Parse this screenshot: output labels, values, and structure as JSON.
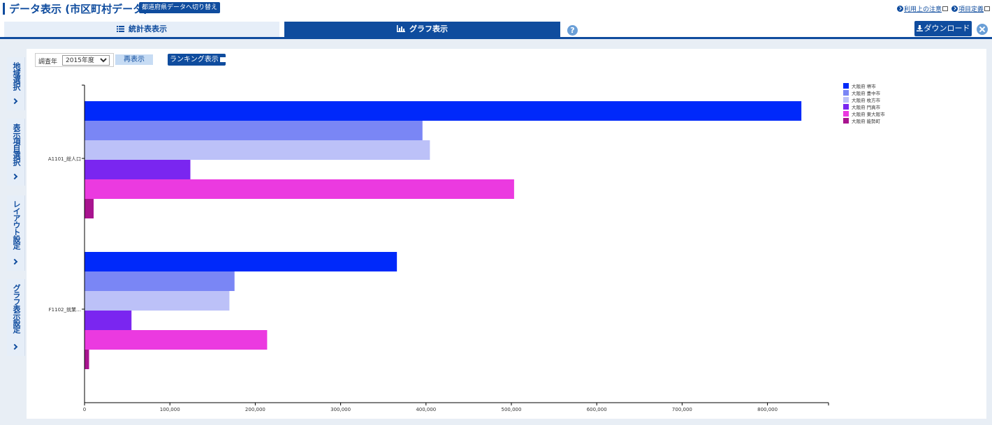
{
  "header": {
    "title": "データ表示 (市区町村データ)",
    "switch_label": "都道府県データへ切り替え",
    "links": {
      "terms": "利用上の注意",
      "definitions": "項目定義"
    }
  },
  "tabs": {
    "stat_table": "統計表表示",
    "graph": "グラフ表示"
  },
  "toolbar": {
    "download_label": "ダウンロード"
  },
  "side_tabs": [
    "地域選択",
    "表示項目選択",
    "レイアウト設定",
    "グラフ表示設定"
  ],
  "controls": {
    "year_label": "調査年",
    "year_selected": "2015年度",
    "refresh_label": "再表示",
    "ranking_label": "ランキング表示"
  },
  "colors": {
    "brand": "#0f4c9e",
    "series": [
      "#0029fa",
      "#7a86f5",
      "#bcc1f8",
      "#7a26f0",
      "#eb3ae0",
      "#a8148f"
    ]
  },
  "chart_data": {
    "type": "bar",
    "orientation": "horizontal",
    "categories": [
      "A1101_総人口",
      "F1102_就業…"
    ],
    "series": [
      {
        "name": "大阪府 堺市",
        "values": [
          839310,
          365500
        ]
      },
      {
        "name": "大阪府 豊中市",
        "values": [
          395479,
          175300
        ]
      },
      {
        "name": "大阪府 枚方市",
        "values": [
          404152,
          169300
        ]
      },
      {
        "name": "大阪府 門真市",
        "values": [
          123576,
          54600
        ]
      },
      {
        "name": "大阪府 東大阪市",
        "values": [
          502784,
          213500
        ]
      },
      {
        "name": "大阪府 能勢町",
        "values": [
          10256,
          4900
        ]
      }
    ],
    "xlim": [
      0,
      870000
    ],
    "xticks": [
      "0",
      "100,000",
      "200,000",
      "300,000",
      "400,000",
      "500,000",
      "600,000",
      "700,000",
      "800,000"
    ],
    "legend": "top-right"
  }
}
